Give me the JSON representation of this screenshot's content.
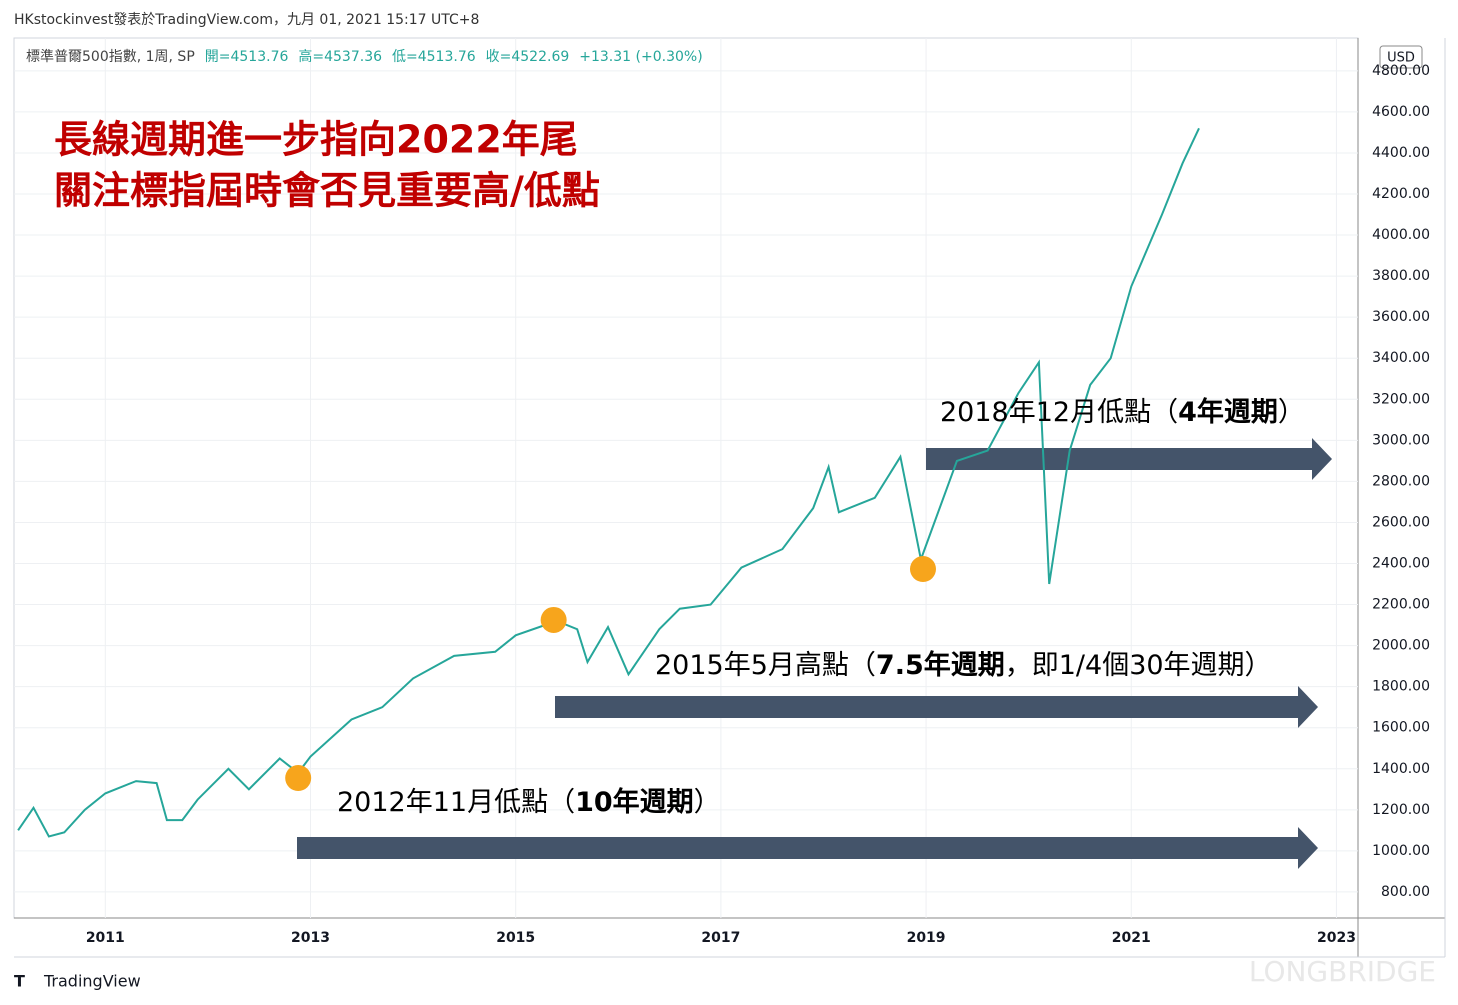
{
  "chart_data": {
    "type": "line",
    "header": "HKstockinvest發表於TradingView.com，九月 01, 2021 15:17 UTC+8",
    "legend_info": [
      "標準普爾500指數, 1周, SP",
      "開=4513.76",
      "高=4537.36",
      "低=4513.76",
      "收=4522.69",
      "+13.31 (+0.30%)"
    ],
    "title_lines": [
      "長線週期進一步指向2022年尾",
      "關注標指屆時會否見重要高/低點"
    ],
    "currency": "USD",
    "x": [
      2010.15,
      2010.3,
      2010.45,
      2010.6,
      2010.8,
      2011.0,
      2011.3,
      2011.5,
      2011.6,
      2011.75,
      2011.9,
      2012.2,
      2012.4,
      2012.7,
      2012.88,
      2013.0,
      2013.4,
      2013.7,
      2014.0,
      2014.4,
      2014.8,
      2015.0,
      2015.4,
      2015.6,
      2015.7,
      2015.9,
      2016.1,
      2016.4,
      2016.6,
      2016.9,
      2017.2,
      2017.6,
      2017.9,
      2018.05,
      2018.15,
      2018.5,
      2018.75,
      2018.95,
      2019.3,
      2019.6,
      2019.9,
      2020.1,
      2020.2,
      2020.4,
      2020.6,
      2020.8,
      2021.0,
      2021.3,
      2021.5,
      2021.66
    ],
    "values": [
      1100,
      1210,
      1070,
      1090,
      1200,
      1280,
      1340,
      1330,
      1150,
      1150,
      1250,
      1400,
      1300,
      1450,
      1380,
      1460,
      1640,
      1700,
      1840,
      1950,
      1970,
      2050,
      2120,
      2080,
      1920,
      2090,
      1860,
      2080,
      2180,
      2200,
      2380,
      2470,
      2670,
      2870,
      2650,
      2720,
      2920,
      2420,
      2900,
      2950,
      3230,
      3380,
      2300,
      2950,
      3270,
      3400,
      3750,
      4100,
      4350,
      4520
    ],
    "color": "#26a69a",
    "highlight_points": [
      {
        "x": 2012.88,
        "y": 1355
      },
      {
        "x": 2015.37,
        "y": 2125
      },
      {
        "x": 2018.97,
        "y": 2373
      }
    ],
    "highlight_color": "#f7a51c",
    "annotations": [
      [
        "2018年12月低點（",
        "4年週期",
        "）"
      ],
      [
        "2015年5月高點（",
        "7.5年週期",
        "，即1/4個30年週期）"
      ],
      [
        "2012年11月低點（",
        "10年週期",
        "）"
      ]
    ],
    "xlim": [
      2010.11,
      2023.21
    ],
    "xticks": [
      2011,
      2013,
      2015,
      2017,
      2019,
      2021,
      2023
    ],
    "ylim": [
      673,
      4960
    ],
    "yticks": [
      {
        "value": 800,
        "label": "800.00"
      },
      {
        "value": 1000,
        "label": "1000.00"
      },
      {
        "value": 1200,
        "label": "1200.00"
      },
      {
        "value": 1400,
        "label": "1400.00"
      },
      {
        "value": 1600,
        "label": "1600.00"
      },
      {
        "value": 1800,
        "label": "1800.00"
      },
      {
        "value": 2000,
        "label": "2000.00"
      },
      {
        "value": 2200,
        "label": "2200.00"
      },
      {
        "value": 2400,
        "label": "2400.00"
      },
      {
        "value": 2600,
        "label": "2600.00"
      },
      {
        "value": 2800,
        "label": "2800.00"
      },
      {
        "value": 3000,
        "label": "3000.00"
      },
      {
        "value": 3200,
        "label": "3200.00"
      },
      {
        "value": 3400,
        "label": "3400.00"
      },
      {
        "value": 3600,
        "label": "3600.00"
      },
      {
        "value": 3800,
        "label": "3800.00"
      },
      {
        "value": 4000,
        "label": "4000.00"
      },
      {
        "value": 4200,
        "label": "4200.00"
      },
      {
        "value": 4400,
        "label": "4400.00"
      },
      {
        "value": 4600,
        "label": "4600.00"
      },
      {
        "value": 4800,
        "label": "4800.00"
      }
    ],
    "grid": true,
    "footer_logo": "TradingView",
    "watermark": "LONGBRIDGE"
  }
}
